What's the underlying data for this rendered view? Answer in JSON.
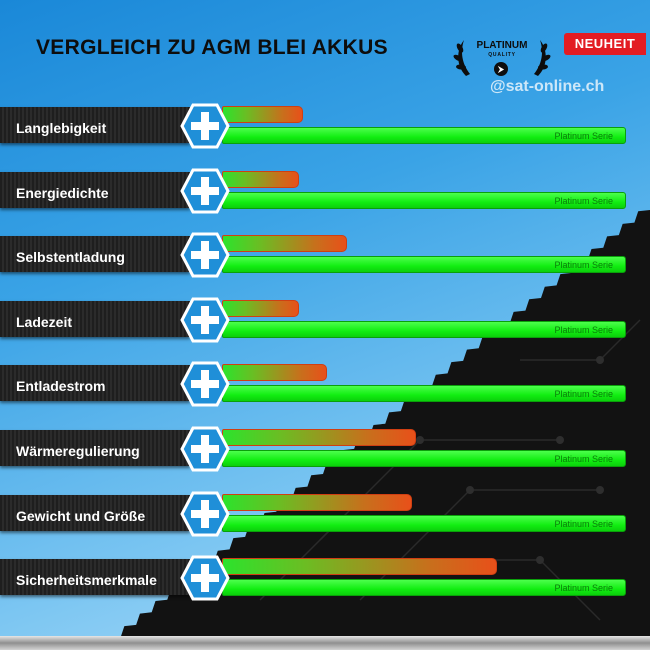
{
  "header": {
    "title": "VERGLEICH ZU AGM BLEI AKKUS",
    "badge": "NEUHEIT",
    "quality_title": "PLATINUM",
    "quality_sub": "QUALITY",
    "quality_arrow": "⮞",
    "watermark": "@sat-online.ch"
  },
  "colors": {
    "accent_red": "#e31c23",
    "bar_green": "#14ee14",
    "bar_orange": "#e8501a",
    "dark_bg": "#111111",
    "sky": "#3aa3e6"
  },
  "chart_data": {
    "type": "bar",
    "orientation": "horizontal",
    "title": "VERGLEICH ZU AGM BLEI AKKUS",
    "categories": [
      "Langlebigkeit",
      "Energiedichte",
      "Selbstentladung",
      "Ladezeit",
      "Entladestrom",
      "Wärmeregulierung",
      "Gewicht und Größe",
      "Sicherheitsmerkmale"
    ],
    "series": [
      {
        "name": "",
        "values": [
          20,
          19,
          31,
          19,
          26,
          48,
          47,
          68
        ]
      },
      {
        "name": "Platinum Serie",
        "values": [
          100,
          100,
          100,
          100,
          100,
          100,
          100,
          100
        ]
      }
    ],
    "xlim": [
      0,
      100
    ],
    "grid": false,
    "icon": "plus-hexagon-icon"
  }
}
